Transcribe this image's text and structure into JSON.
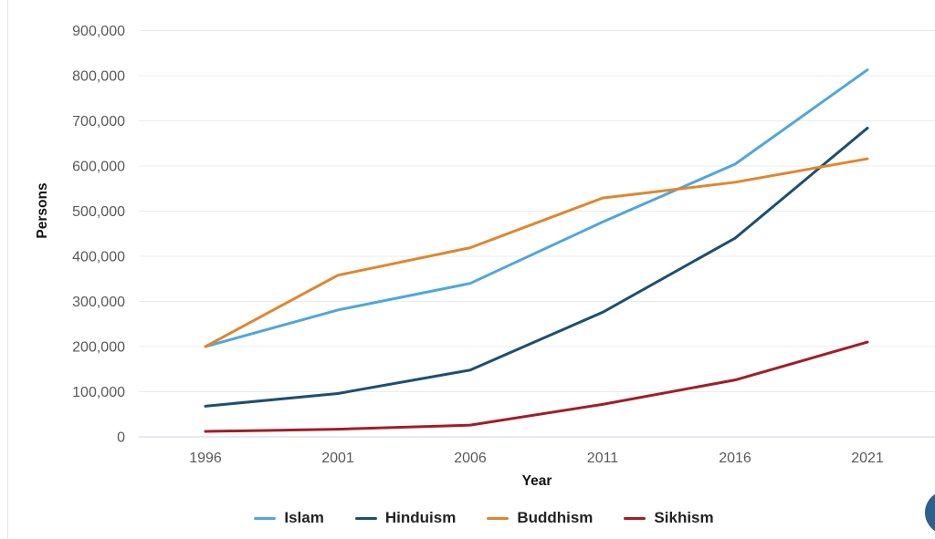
{
  "chart_data": {
    "type": "line",
    "title": "",
    "xlabel": "Year",
    "ylabel": "Persons",
    "categories": [
      "1996",
      "2001",
      "2006",
      "2011",
      "2016",
      "2021"
    ],
    "y_ticks": [
      0,
      100000,
      200000,
      300000,
      400000,
      500000,
      600000,
      700000,
      800000,
      900000
    ],
    "y_tick_labels": [
      "0",
      "100,000",
      "200,000",
      "300,000",
      "400,000",
      "500,000",
      "600,000",
      "700,000",
      "800,000",
      "900,000"
    ],
    "ylim": [
      0,
      900000
    ],
    "grid": "horizontal-only",
    "legend_position": "bottom-center",
    "series": [
      {
        "name": "Islam",
        "color": "#4fa7dc",
        "values": [
          200000,
          281000,
          340000,
          476000,
          604000,
          813000
        ]
      },
      {
        "name": "Hinduism",
        "color": "#1d4f70",
        "values": [
          68000,
          96000,
          148000,
          276000,
          440000,
          684000
        ]
      },
      {
        "name": "Buddhism",
        "color": "#e0862f",
        "values": [
          200000,
          358000,
          419000,
          529000,
          564000,
          616000
        ]
      },
      {
        "name": "Sikhism",
        "color": "#a21d28",
        "values": [
          12000,
          17000,
          26000,
          72000,
          126000,
          210000
        ]
      }
    ]
  },
  "decorations": {
    "zero_axis_color": "#c9d6ea",
    "gridline_color": "#ececec",
    "fab_color": "#2e5f8d"
  }
}
